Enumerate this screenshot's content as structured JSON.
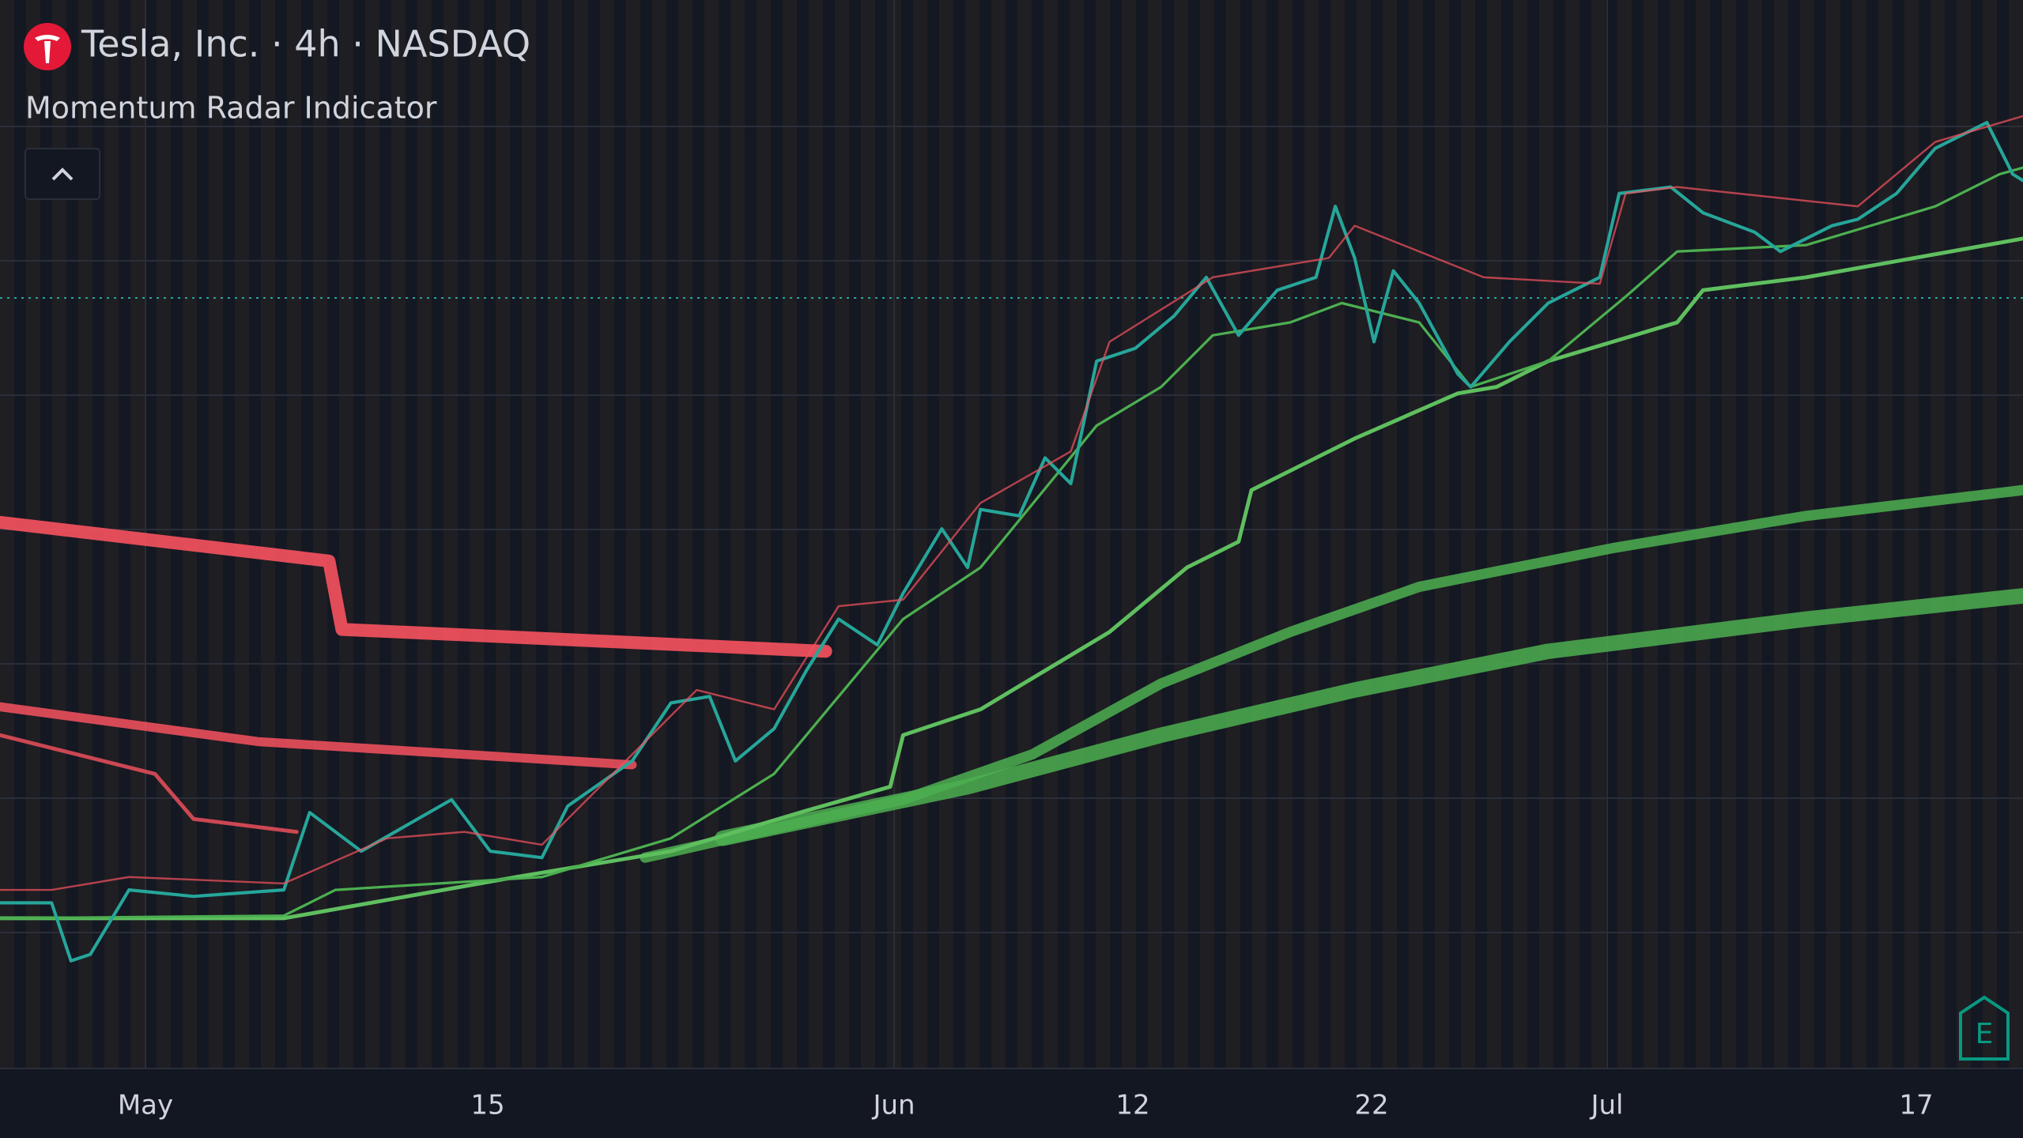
{
  "header": {
    "symbol_title": "Tesla, Inc. · 4h · NASDAQ",
    "indicator": "Momentum Radar Indicator"
  },
  "x_axis": {
    "labels": [
      "May",
      "15",
      "Jun",
      "12",
      "22",
      "Jul",
      "17"
    ]
  },
  "earnings_icon": "E"
}
